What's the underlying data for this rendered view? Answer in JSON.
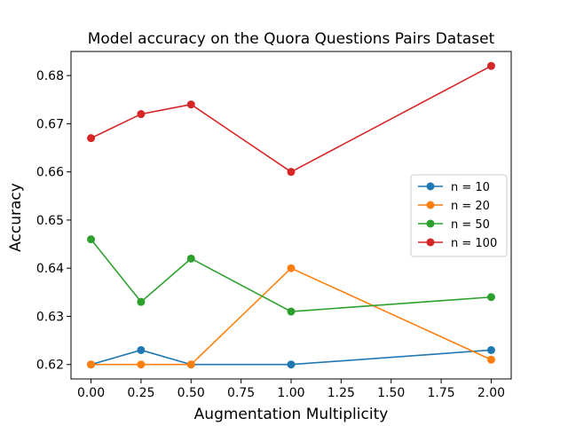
{
  "chart_data": {
    "type": "line",
    "title": "Model accuracy on the Quora Questions Pairs Dataset",
    "xlabel": "Augmentation Multiplicity",
    "ylabel": "Accuracy",
    "x": [
      0.0,
      0.25,
      0.5,
      1.0,
      2.0
    ],
    "xlim": [
      -0.1,
      2.1
    ],
    "ylim": [
      0.617,
      0.685
    ],
    "xticks": [
      0.0,
      0.25,
      0.5,
      0.75,
      1.0,
      1.25,
      1.5,
      1.75,
      2.0
    ],
    "xtick_labels": [
      "0.00",
      "0.25",
      "0.50",
      "0.75",
      "1.00",
      "1.25",
      "1.50",
      "1.75",
      "2.00"
    ],
    "yticks": [
      0.62,
      0.63,
      0.64,
      0.65,
      0.66,
      0.67,
      0.68
    ],
    "ytick_labels": [
      "0.62",
      "0.63",
      "0.64",
      "0.65",
      "0.66",
      "0.67",
      "0.68"
    ],
    "grid": false,
    "legend_position": "center-right",
    "series": [
      {
        "name": "n = 10",
        "color": "#1f77b4",
        "values": [
          0.62,
          0.623,
          0.62,
          0.62,
          0.623
        ]
      },
      {
        "name": "n = 20",
        "color": "#ff7f0e",
        "values": [
          0.62,
          0.62,
          0.62,
          0.64,
          0.621
        ]
      },
      {
        "name": "n = 50",
        "color": "#2ca02c",
        "values": [
          0.646,
          0.633,
          0.642,
          0.631,
          0.634
        ]
      },
      {
        "name": "n = 100",
        "color": "#d62728",
        "values": [
          0.667,
          0.672,
          0.674,
          0.66,
          0.682
        ]
      }
    ]
  }
}
